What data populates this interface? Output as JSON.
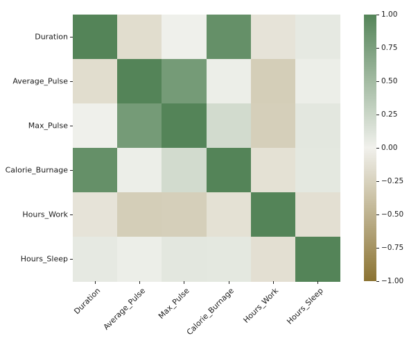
{
  "figure": {
    "background": "#ffffff",
    "title": ""
  },
  "chart_data": {
    "type": "heatmap",
    "title": "",
    "xlabel": "",
    "ylabel": "",
    "categories": [
      "Duration",
      "Average_Pulse",
      "Max_Pulse",
      "Calorie_Burnage",
      "Hours_Work",
      "Hours_Sleep"
    ],
    "matrix": [
      [
        1.0,
        -0.16,
        0.01,
        0.89,
        -0.11,
        0.07
      ],
      [
        -0.16,
        1.0,
        0.79,
        0.03,
        -0.28,
        0.03
      ],
      [
        0.01,
        0.79,
        1.0,
        0.2,
        -0.27,
        0.09
      ],
      [
        0.89,
        0.03,
        0.2,
        1.0,
        -0.13,
        0.08
      ],
      [
        -0.11,
        -0.28,
        -0.27,
        -0.13,
        1.0,
        -0.14
      ],
      [
        0.07,
        0.03,
        0.09,
        0.08,
        -0.14,
        1.0
      ]
    ],
    "vmin": -1.0,
    "vmax": 1.0,
    "grid": false,
    "legend_position": "right-colorbar",
    "colorbar_tick_values": [
      1.0,
      0.75,
      0.5,
      0.25,
      0.0,
      -0.25,
      -0.5,
      -0.75,
      -1.0
    ],
    "colorbar_tick_labels": [
      "1.00",
      "0.75",
      "0.50",
      "0.25",
      "0.00",
      "−0.25",
      "−0.50",
      "−0.75",
      "−1.00"
    ],
    "colors": {
      "positive_end": "#548458",
      "center": "#F1F1EC",
      "negative_end": "#8B7332",
      "text": "#1a1a1a"
    }
  }
}
